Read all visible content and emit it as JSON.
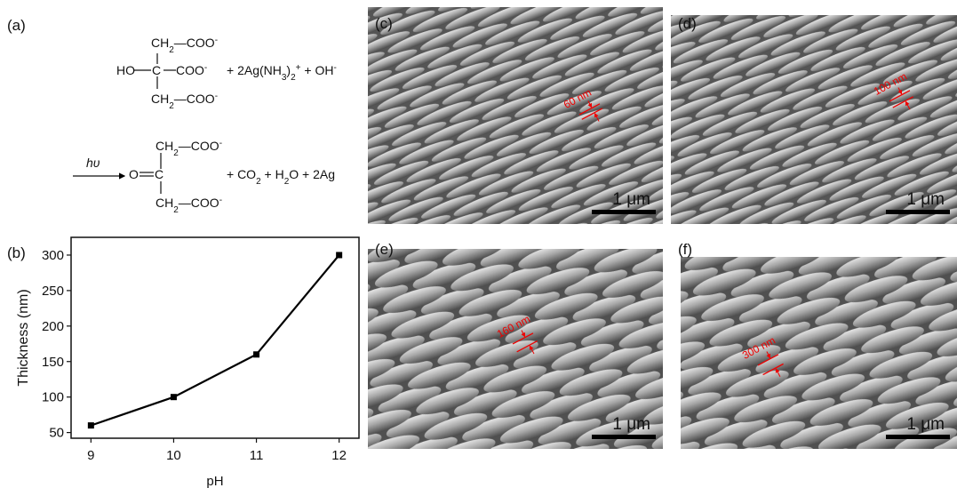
{
  "figure": {
    "labels": {
      "a": "(a)",
      "b": "(b)"
    },
    "equation": {
      "top1": [
        "CH",
        "2",
        "—COO",
        "-"
      ],
      "mid1": [
        "HO",
        "C",
        "COO",
        "-"
      ],
      "rhs1": [
        "+ 2Ag(NH",
        "3",
        ")",
        "2",
        "+",
        " + OH",
        "-"
      ],
      "bottom1": [
        "CH",
        "2",
        "—COO",
        "-"
      ],
      "light": "hυ",
      "top2": [
        "CH",
        "2",
        "—COO",
        "-"
      ],
      "mid2": [
        "O",
        "C"
      ],
      "rhs2": [
        "+ CO",
        "2",
        " + H",
        "2",
        "O + 2Ag"
      ],
      "bottom2": [
        "CH",
        "2",
        "—COO",
        "-"
      ]
    },
    "images": [
      {
        "label": "(c)",
        "thickness": "60 nm",
        "scale": "1 μm"
      },
      {
        "label": "(d)",
        "thickness": "100 nm",
        "scale": "1 μm"
      },
      {
        "label": "(e)",
        "thickness": "160 nm",
        "scale": "1 μm"
      },
      {
        "label": "(f)",
        "thickness": "300 nm",
        "scale": "1 μm"
      }
    ]
  },
  "chart_data": {
    "type": "line",
    "x": [
      9,
      10,
      11,
      12
    ],
    "values": [
      60,
      100,
      160,
      300
    ],
    "xlabel": "pH",
    "ylabel": "Thickness (nm)",
    "color": "#000000",
    "marker": "square",
    "xlim": [
      8.76,
      12.24
    ],
    "ylim": [
      42,
      325
    ],
    "xticks": [
      9,
      10,
      11,
      12
    ],
    "yticks": [
      50,
      100,
      150,
      200,
      250,
      300
    ]
  }
}
